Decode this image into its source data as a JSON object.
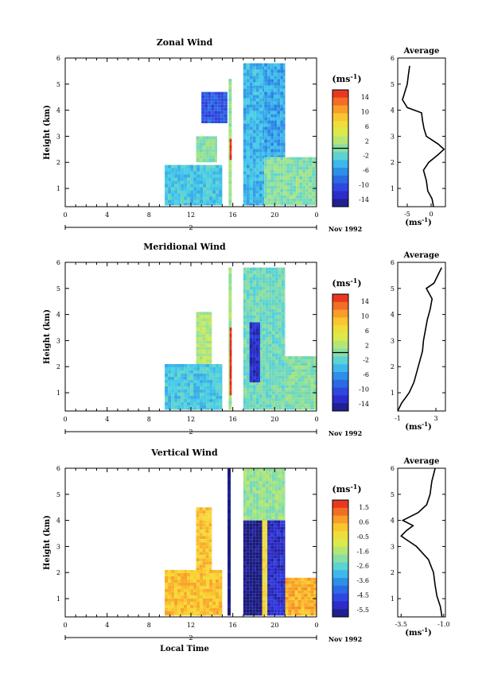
{
  "chart_data": [
    {
      "type": "heatmap",
      "title": "Zonal Wind",
      "ylabel": "Height (km)",
      "xlabel": "",
      "xlim": [
        0,
        24
      ],
      "ylim": [
        0.3,
        6
      ],
      "xticks": [
        "0",
        "4",
        "8",
        "12",
        "16",
        "20",
        "0"
      ],
      "yticks": [
        "1",
        "2",
        "3",
        "4",
        "5",
        "6"
      ],
      "date_row": {
        "day": "2",
        "month": "Nov 1992"
      },
      "colorbar": {
        "unit": "(ms",
        "unit_exp": "-1",
        "unit_close": ")",
        "range": [
          -15,
          15
        ],
        "ticks": [
          "14",
          "10",
          "6",
          "2",
          "-2",
          "-6",
          "-10",
          "-14"
        ],
        "mark_value": 0
      },
      "data_regions": [
        {
          "t0": 9.5,
          "t1": 15.0,
          "z0": 0.35,
          "z1": 1.9,
          "value": -3
        },
        {
          "t0": 12.5,
          "t1": 14.5,
          "z0": 2.0,
          "z1": 3.0,
          "value": 0
        },
        {
          "t0": 13.0,
          "t1": 15.5,
          "z0": 3.5,
          "z1": 4.7,
          "value": -9
        },
        {
          "t0": 15.6,
          "t1": 15.9,
          "z0": 0.35,
          "z1": 5.2,
          "value": 1
        },
        {
          "t0": 15.7,
          "t1": 15.9,
          "z0": 2.1,
          "z1": 2.9,
          "value": 15
        },
        {
          "t0": 17.0,
          "t1": 19.0,
          "z0": 0.35,
          "z1": 5.8,
          "value": -4
        },
        {
          "t0": 19.0,
          "t1": 21.0,
          "z0": 2.2,
          "z1": 5.8,
          "value": -5
        },
        {
          "t0": 19.0,
          "t1": 24.0,
          "z0": 0.35,
          "z1": 2.2,
          "value": 0
        }
      ],
      "profile": {
        "title": "Average",
        "xlim": [
          -7,
          3
        ],
        "xticks": [
          "-5",
          "0"
        ],
        "xlabel": "(ms",
        "xlabel_exp": "-1",
        "xlabel_close": ")",
        "z": [
          0.3,
          0.6,
          0.9,
          1.3,
          1.7,
          2.0,
          2.3,
          2.5,
          2.7,
          3.0,
          3.3,
          3.6,
          3.9,
          4.1,
          4.4,
          4.7,
          5.0,
          5.3,
          5.7
        ],
        "value": [
          0.5,
          0.2,
          -0.7,
          -1.0,
          -1.6,
          -0.5,
          1.5,
          2.7,
          1.5,
          -1.0,
          -1.5,
          -1.8,
          -2.0,
          -5.0,
          -6.0,
          -5.5,
          -5.0,
          -4.8,
          -4.5
        ]
      }
    },
    {
      "type": "heatmap",
      "title": "Meridional Wind",
      "ylabel": "Height (km)",
      "xlabel": "",
      "xlim": [
        0,
        24
      ],
      "ylim": [
        0.3,
        6
      ],
      "xticks": [
        "0",
        "4",
        "8",
        "12",
        "16",
        "20",
        "0"
      ],
      "yticks": [
        "1",
        "2",
        "3",
        "4",
        "5",
        "6"
      ],
      "date_row": {
        "day": "2",
        "month": "Nov 1992"
      },
      "colorbar": {
        "unit": "(ms",
        "unit_exp": "-1",
        "unit_close": ")",
        "range": [
          -15,
          15
        ],
        "ticks": [
          "14",
          "10",
          "6",
          "2",
          "-2",
          "-6",
          "-10",
          "-14"
        ],
        "mark_value": 0
      },
      "data_regions": [
        {
          "t0": 9.5,
          "t1": 15.0,
          "z0": 0.35,
          "z1": 2.1,
          "value": -3
        },
        {
          "t0": 12.5,
          "t1": 14.0,
          "z0": 2.1,
          "z1": 4.1,
          "value": 2
        },
        {
          "t0": 15.6,
          "t1": 15.9,
          "z0": 0.35,
          "z1": 5.8,
          "value": 1
        },
        {
          "t0": 15.7,
          "t1": 15.9,
          "z0": 0.9,
          "z1": 3.5,
          "value": 15
        },
        {
          "t0": 17.0,
          "t1": 21.0,
          "z0": 0.35,
          "z1": 5.8,
          "value": -1
        },
        {
          "t0": 17.6,
          "t1": 18.6,
          "z0": 1.4,
          "z1": 3.7,
          "value": -12
        },
        {
          "t0": 21.0,
          "t1": 24.0,
          "z0": 0.35,
          "z1": 2.4,
          "value": 0
        }
      ],
      "profile": {
        "title": "Average",
        "xlim": [
          -1,
          4
        ],
        "xticks": [
          "-1",
          "3"
        ],
        "xlabel": "(ms",
        "xlabel_exp": "-1",
        "xlabel_close": ")",
        "z": [
          0.3,
          0.6,
          1.0,
          1.4,
          1.8,
          2.2,
          2.6,
          3.0,
          3.4,
          3.8,
          4.2,
          4.6,
          5.0,
          5.2,
          5.5,
          5.8
        ],
        "value": [
          -1.0,
          -0.6,
          0.2,
          0.7,
          1.0,
          1.3,
          1.6,
          1.7,
          1.9,
          2.1,
          2.4,
          2.6,
          2.0,
          2.8,
          3.2,
          3.6
        ]
      }
    },
    {
      "type": "heatmap",
      "title": "Vertical Wind",
      "ylabel": "Height (km)",
      "xlabel": "Local Time",
      "xlim": [
        0,
        24
      ],
      "ylim": [
        0.3,
        6
      ],
      "xticks": [
        "0",
        "4",
        "8",
        "12",
        "16",
        "20",
        "0"
      ],
      "yticks": [
        "1",
        "2",
        "3",
        "4",
        "5",
        "6"
      ],
      "date_row": {
        "day": "2",
        "month": "Nov 1992"
      },
      "colorbar": {
        "unit": "(ms",
        "unit_exp": "-1",
        "unit_close": ")",
        "range": [
          -6,
          2
        ],
        "ticks": [
          "1.5",
          "0.6",
          "-0.5",
          "-1.6",
          "-2.6",
          "-3.6",
          "-4.5",
          "-5.5"
        ],
        "mark_value": null
      },
      "data_regions": [
        {
          "t0": 9.5,
          "t1": 15.0,
          "z0": 0.35,
          "z1": 2.1,
          "value": 0.2
        },
        {
          "t0": 12.5,
          "t1": 14.0,
          "z0": 2.1,
          "z1": 4.5,
          "value": 0.1
        },
        {
          "t0": 15.5,
          "t1": 15.8,
          "z0": 0.35,
          "z1": 6.0,
          "value": -6
        },
        {
          "t0": 17.0,
          "t1": 18.8,
          "z0": 0.35,
          "z1": 4.0,
          "value": -6
        },
        {
          "t0": 17.0,
          "t1": 21.0,
          "z0": 4.0,
          "z1": 6.0,
          "value": -1.8
        },
        {
          "t0": 18.8,
          "t1": 19.3,
          "z0": 0.35,
          "z1": 4.0,
          "value": -0.3
        },
        {
          "t0": 19.3,
          "t1": 21.0,
          "z0": 0.35,
          "z1": 4.0,
          "value": -5.2
        },
        {
          "t0": 21.0,
          "t1": 24.0,
          "z0": 0.35,
          "z1": 1.8,
          "value": 0.4
        }
      ],
      "profile": {
        "title": "Average",
        "xlim": [
          -3.7,
          -0.9
        ],
        "xticks": [
          "-3.5",
          "-1.0"
        ],
        "xlabel": "(ms",
        "xlabel_exp": "-1",
        "xlabel_close": ")",
        "z": [
          0.3,
          0.7,
          1.1,
          1.5,
          2.0,
          2.5,
          3.0,
          3.4,
          3.6,
          3.8,
          4.0,
          4.3,
          4.6,
          5.0,
          5.5,
          6.0
        ],
        "value": [
          -1.1,
          -1.2,
          -1.4,
          -1.5,
          -1.6,
          -1.9,
          -2.6,
          -3.5,
          -3.2,
          -2.8,
          -3.4,
          -2.5,
          -2.0,
          -1.8,
          -1.7,
          -1.5
        ]
      }
    }
  ]
}
